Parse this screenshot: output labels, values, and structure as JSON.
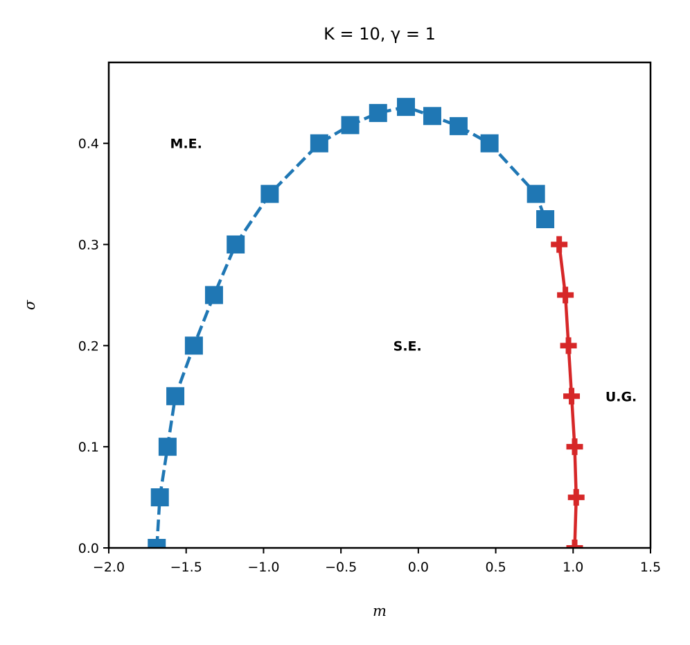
{
  "chart_data": {
    "type": "line",
    "title": "K = 10, γ = 1",
    "xlabel": "m",
    "ylabel": "σ",
    "xlim": [
      -2.0,
      1.5
    ],
    "ylim": [
      0.0,
      0.48
    ],
    "grid": false,
    "xticks": [
      -2.0,
      -1.5,
      -1.0,
      -0.5,
      0.0,
      0.5,
      1.0,
      1.5
    ],
    "xtick_labels": [
      "−2.0",
      "−1.5",
      "−1.0",
      "−0.5",
      "0.0",
      "0.5",
      "1.0",
      "1.5"
    ],
    "yticks": [
      0.0,
      0.1,
      0.2,
      0.3,
      0.4
    ],
    "ytick_labels": [
      "0.0",
      "0.1",
      "0.2",
      "0.3",
      "0.4"
    ],
    "series": [
      {
        "color": "#1f77b4",
        "line_style": "dashed",
        "marker": "square",
        "x": [
          -1.69,
          -1.67,
          -1.62,
          -1.57,
          -1.45,
          -1.32,
          -1.18,
          -0.96,
          -0.64,
          -0.44,
          -0.26,
          -0.08,
          0.09,
          0.26,
          0.46,
          0.76,
          0.82
        ],
        "y": [
          0.0,
          0.05,
          0.1,
          0.15,
          0.2,
          0.25,
          0.3,
          0.35,
          0.4,
          0.418,
          0.43,
          0.436,
          0.427,
          0.417,
          0.4,
          0.35,
          0.325
        ]
      },
      {
        "color": "#d62728",
        "line_style": "solid",
        "marker": "plus",
        "x": [
          0.91,
          0.95,
          0.97,
          0.99,
          1.01,
          1.02,
          1.01
        ],
        "y": [
          0.3,
          0.25,
          0.2,
          0.15,
          0.1,
          0.05,
          0.0
        ]
      }
    ],
    "annotations": [
      {
        "text": "M.E.",
        "x": -1.5,
        "y": 0.4
      },
      {
        "text": "S.E.",
        "x": -0.07,
        "y": 0.2
      },
      {
        "text": "U.G.",
        "x": 1.31,
        "y": 0.15
      }
    ]
  }
}
